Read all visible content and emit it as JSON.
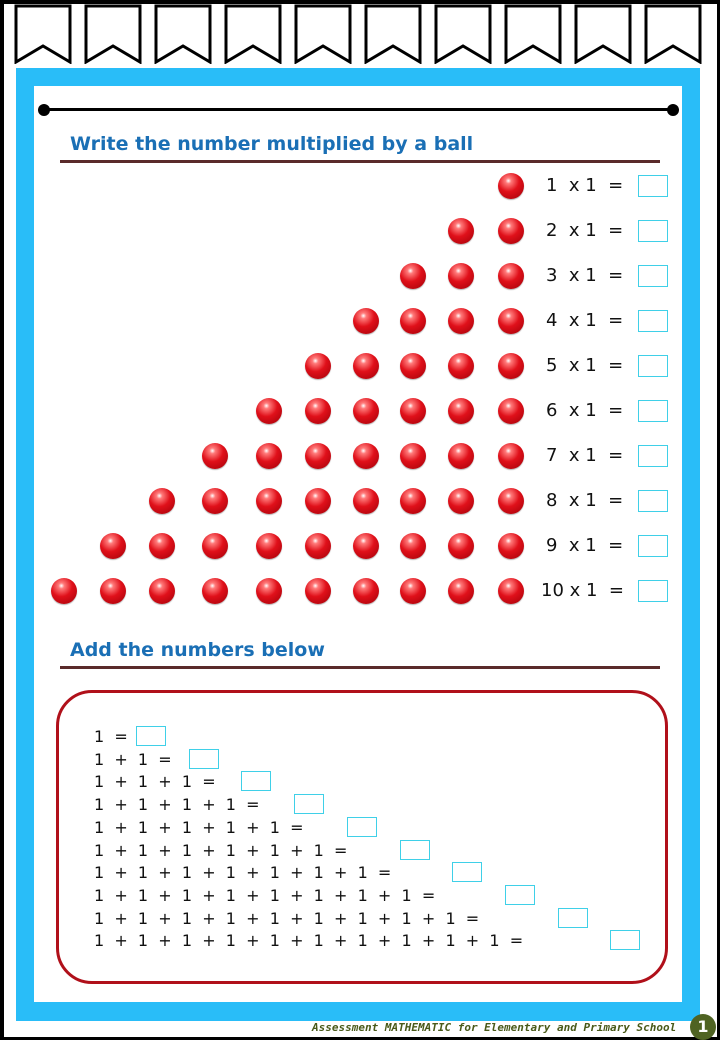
{
  "section1": {
    "title": "Write the number multiplied by a ball",
    "rows": [
      {
        "balls": 1,
        "label": "1  x 1  ="
      },
      {
        "balls": 2,
        "label": "2  x 1  ="
      },
      {
        "balls": 3,
        "label": "3  x 1  ="
      },
      {
        "balls": 4,
        "label": "4  x 1  ="
      },
      {
        "balls": 5,
        "label": "5  x 1  ="
      },
      {
        "balls": 6,
        "label": "6  x 1  ="
      },
      {
        "balls": 7,
        "label": "7  x 1  ="
      },
      {
        "balls": 8,
        "label": "8  x 1  ="
      },
      {
        "balls": 9,
        "label": "9  x 1  ="
      },
      {
        "balls": 10,
        "label": "10 x 1  ="
      }
    ]
  },
  "section2": {
    "title": "Add the numbers below",
    "rows": [
      "1  =",
      "1  +  1  =",
      "1  +  1  +  1  =",
      "1  +  1  +  1  +  1  =",
      "1  +  1  +  1  +  1  +  1  =",
      "1  +  1  +  1  +  1  +  1  +  1  =",
      "1  +  1  +  1  +  1  +  1  +  1  +  1  =",
      "1  +  1  +  1  +  1  +  1  +  1  +  1  +  1  =",
      "1  +  1  +  1  +  1  +  1  +  1  +  1  +  1  +  1  =",
      "1  +  1  +  1  +  1  +  1  +  1  +  1  +  1  +  1  +  1  ="
    ]
  },
  "footer": {
    "text": "Assessment MATHEMATIC for Elementary and Primary School",
    "page": "1"
  },
  "colors": {
    "frame": "#29bdf8",
    "title": "#1a6fb5",
    "ball": "#e0101a",
    "answer_box": "#3fd0e8",
    "rounded_border": "#b0101a"
  }
}
